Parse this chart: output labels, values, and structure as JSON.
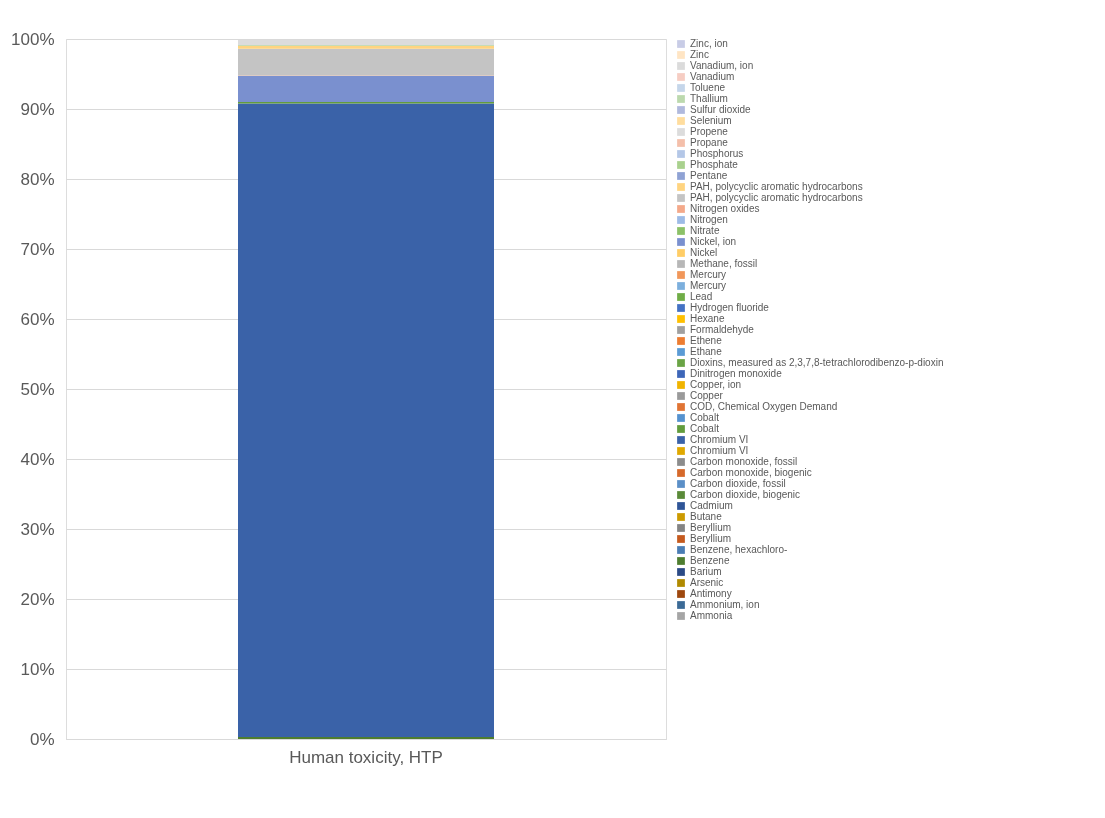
{
  "chart_data": {
    "type": "bar",
    "stacked": true,
    "categories": [
      "Human toxicity, HTP"
    ],
    "ylim": [
      0,
      100
    ],
    "yticks": [
      {
        "value": 0,
        "label": "0%"
      },
      {
        "value": 10,
        "label": "10%"
      },
      {
        "value": 20,
        "label": "20%"
      },
      {
        "value": 30,
        "label": "30%"
      },
      {
        "value": 40,
        "label": "40%"
      },
      {
        "value": 50,
        "label": "50%"
      },
      {
        "value": 60,
        "label": "60%"
      },
      {
        "value": 70,
        "label": "70%"
      },
      {
        "value": 80,
        "label": "80%"
      },
      {
        "value": 90,
        "label": "90%"
      },
      {
        "value": 100,
        "label": "100%"
      }
    ],
    "grid": "y",
    "legend": "right",
    "series": [
      {
        "name": "Ammonia",
        "color": "#a5a5a5",
        "values": [
          0
        ]
      },
      {
        "name": "Ammonium, ion",
        "color": "#3b6a96",
        "values": [
          0
        ]
      },
      {
        "name": "Antimony",
        "color": "#9e480e",
        "values": [
          0
        ]
      },
      {
        "name": "Arsenic",
        "color": "#b08a00",
        "values": [
          0
        ]
      },
      {
        "name": "Barium",
        "color": "#2b4a86",
        "values": [
          0
        ]
      },
      {
        "name": "Benzene",
        "color": "#4e7d2f",
        "values": [
          0.3
        ]
      },
      {
        "name": "Benzene, hexachloro-",
        "color": "#4a7db4",
        "values": [
          0
        ]
      },
      {
        "name": "Beryllium",
        "color": "#c55a1e",
        "values": [
          0
        ]
      },
      {
        "name": "Beryllium",
        "color": "#848484",
        "values": [
          0
        ]
      },
      {
        "name": "Butane",
        "color": "#cc9a00",
        "values": [
          0
        ]
      },
      {
        "name": "Cadmium",
        "color": "#2f5597",
        "values": [
          0
        ]
      },
      {
        "name": "Carbon dioxide, biogenic",
        "color": "#5a8a39",
        "values": [
          0
        ]
      },
      {
        "name": "Carbon dioxide, fossil",
        "color": "#5b8fc7",
        "values": [
          0
        ]
      },
      {
        "name": "Carbon monoxide, biogenic",
        "color": "#d6692a",
        "values": [
          0
        ]
      },
      {
        "name": "Carbon monoxide, fossil",
        "color": "#8c8c8c",
        "values": [
          0
        ]
      },
      {
        "name": "Chromium VI",
        "color": "#e0a800",
        "values": [
          0
        ]
      },
      {
        "name": "Chromium VI",
        "color": "#3a62a8",
        "values": [
          90.5
        ]
      },
      {
        "name": "Cobalt",
        "color": "#629c3d",
        "values": [
          0.2
        ]
      },
      {
        "name": "Cobalt",
        "color": "#5592cf",
        "values": [
          0
        ]
      },
      {
        "name": "COD, Chemical Oxygen Demand",
        "color": "#e07434",
        "values": [
          0
        ]
      },
      {
        "name": "Copper",
        "color": "#9a9a9a",
        "values": [
          0
        ]
      },
      {
        "name": "Copper, ion",
        "color": "#f0b400",
        "values": [
          0
        ]
      },
      {
        "name": "Dinitrogen monoxide",
        "color": "#3d66b8",
        "values": [
          0
        ]
      },
      {
        "name": "Dioxins, measured as 2,3,7,8-tetrachlorodibenzo-p-dioxin",
        "color": "#6aa445",
        "values": [
          0
        ]
      },
      {
        "name": "Ethane",
        "color": "#5b9bd5",
        "values": [
          0
        ]
      },
      {
        "name": "Ethene",
        "color": "#ed7d31",
        "values": [
          0
        ]
      },
      {
        "name": "Formaldehyde",
        "color": "#a0a0a0",
        "values": [
          0
        ]
      },
      {
        "name": "Hexane",
        "color": "#ffc000",
        "values": [
          0
        ]
      },
      {
        "name": "Hydrogen fluoride",
        "color": "#4472c4",
        "values": [
          0
        ]
      },
      {
        "name": "Lead",
        "color": "#70ad47",
        "values": [
          0
        ]
      },
      {
        "name": "Mercury",
        "color": "#7cafdd",
        "values": [
          0
        ]
      },
      {
        "name": "Mercury",
        "color": "#f1975a",
        "values": [
          0
        ]
      },
      {
        "name": "Methane, fossil",
        "color": "#b7b7b7",
        "values": [
          0
        ]
      },
      {
        "name": "Nickel",
        "color": "#ffcd66",
        "values": [
          0
        ]
      },
      {
        "name": "Nickel, ion",
        "color": "#7a90cf",
        "values": [
          3.7
        ]
      },
      {
        "name": "Nitrate",
        "color": "#8cc168",
        "values": [
          0
        ]
      },
      {
        "name": "Nitrogen",
        "color": "#9dbbe6",
        "values": [
          0
        ]
      },
      {
        "name": "Nitrogen oxides",
        "color": "#f4a98a",
        "values": [
          0.1
        ]
      },
      {
        "name": "PAH, polycyclic aromatic hydrocarbons",
        "color": "#c4c4c4",
        "values": [
          3.8
        ]
      },
      {
        "name": "PAH, polycyclic aromatic hydrocarbons",
        "color": "#ffd480",
        "values": [
          0.4
        ]
      },
      {
        "name": "Pentane",
        "color": "#8fa2d4",
        "values": [
          0
        ]
      },
      {
        "name": "Phosphate",
        "color": "#a9d18e",
        "values": [
          0.1
        ]
      },
      {
        "name": "Phosphorus",
        "color": "#b4c7e7",
        "values": [
          0
        ]
      },
      {
        "name": "Propane",
        "color": "#f4bfaa",
        "values": [
          0
        ]
      },
      {
        "name": "Propene",
        "color": "#dcdcdc",
        "values": [
          0.8
        ]
      },
      {
        "name": "Selenium",
        "color": "#ffdd9e",
        "values": [
          0
        ]
      },
      {
        "name": "Sulfur dioxide",
        "color": "#b0b9dd",
        "values": [
          0
        ]
      },
      {
        "name": "Thallium",
        "color": "#bcd9ae",
        "values": [
          0
        ]
      },
      {
        "name": "Toluene",
        "color": "#c5d6ea",
        "values": [
          0
        ]
      },
      {
        "name": "Vanadium",
        "color": "#f6cdc3",
        "values": [
          0
        ]
      },
      {
        "name": "Vanadium, ion",
        "color": "#dbdbdb",
        "values": [
          0
        ]
      },
      {
        "name": "Zinc",
        "color": "#ffe5c4",
        "values": [
          0
        ]
      },
      {
        "name": "Zinc, ion",
        "color": "#c8cce6",
        "values": [
          0
        ]
      }
    ]
  }
}
